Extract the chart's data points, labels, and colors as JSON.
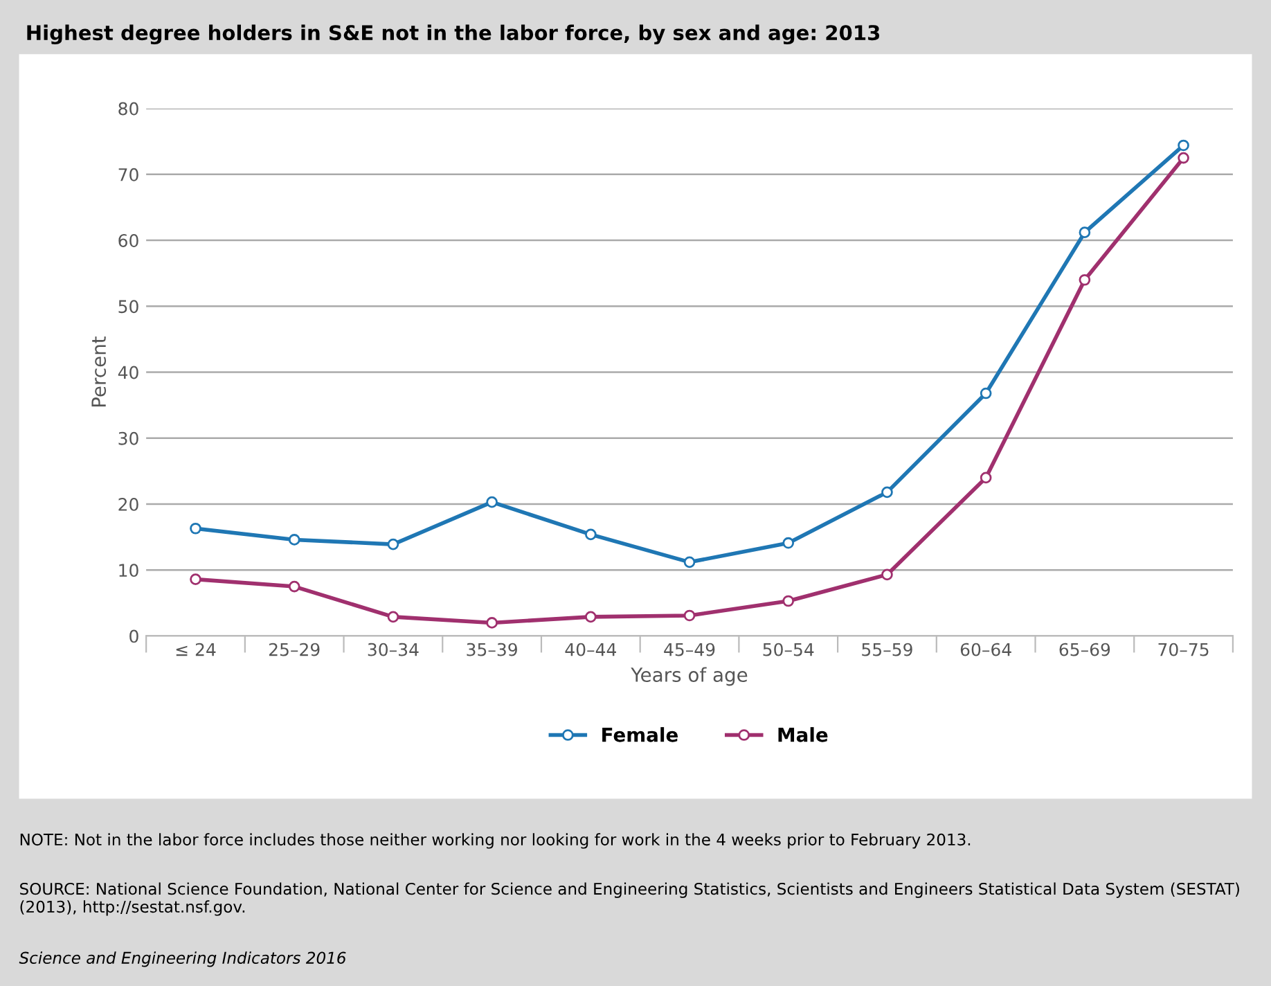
{
  "chart_data": {
    "type": "line",
    "title": "Highest degree holders in S&E not in the labor force, by sex and age: 2013",
    "xlabel": "Years of age",
    "ylabel": "Percent",
    "categories": [
      "≤ 24",
      "25–29",
      "30–34",
      "35–39",
      "40–44",
      "45–49",
      "50–54",
      "55–59",
      "60–64",
      "65–69",
      "70–75"
    ],
    "series": [
      {
        "name": "Female",
        "color": "#1f77b4",
        "values": [
          16.3,
          14.6,
          13.9,
          20.3,
          15.4,
          11.2,
          14.1,
          21.8,
          36.8,
          61.2,
          74.4
        ]
      },
      {
        "name": "Male",
        "color": "#a0306e",
        "values": [
          8.6,
          7.5,
          2.9,
          2.0,
          2.9,
          3.1,
          5.3,
          9.3,
          24.0,
          54.0,
          72.5
        ]
      }
    ],
    "ylim": [
      0,
      80
    ],
    "yticks": [
      0,
      10,
      20,
      30,
      40,
      50,
      60,
      70,
      80
    ],
    "grid": "y",
    "legend": "bottom",
    "marker": "circle",
    "line_style": "solid",
    "annotations": [
      "NOTE: Not in the labor force includes those neither working nor looking for work in the 4 weeks prior to February 2013.",
      "SOURCE: National Science Foundation, National Center for Science and Engineering Statistics, Scientists and Engineers Statistical Data System (SESTAT) (2013), http://sestat.nsf.gov.",
      "Science and Engineering Indicators 2016"
    ]
  }
}
